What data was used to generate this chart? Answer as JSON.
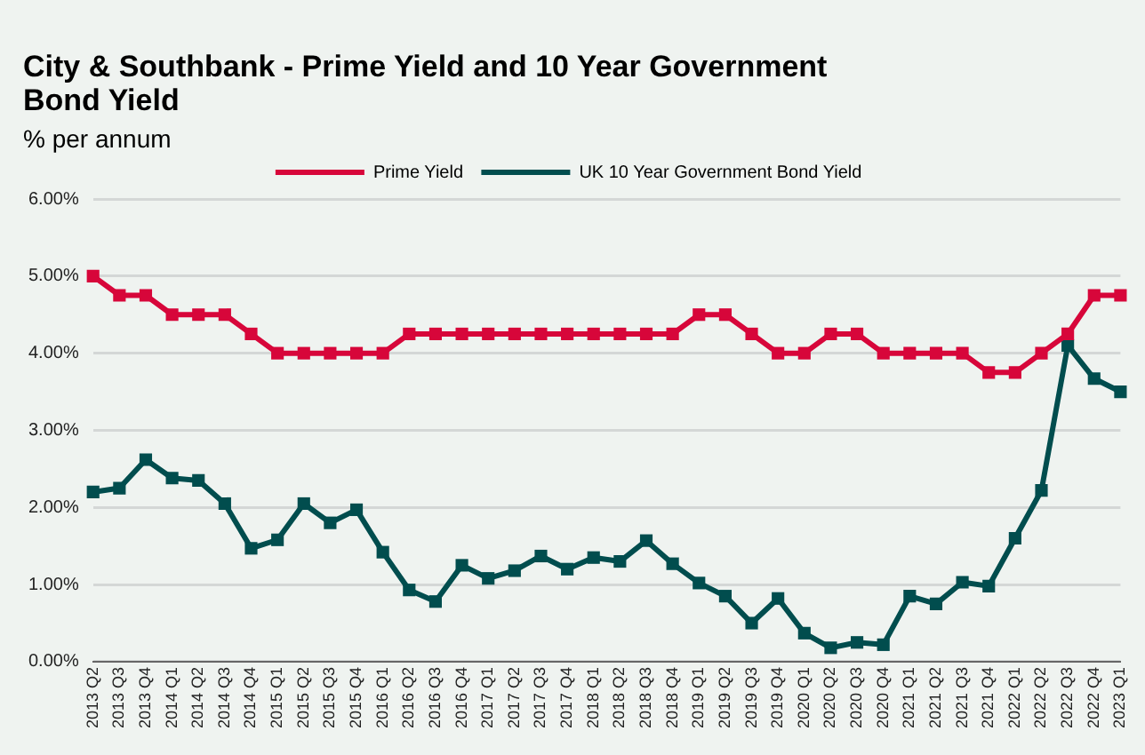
{
  "chart_data": {
    "type": "line",
    "title": "City & Southbank - Prime Yield and 10 Year Government Bond Yield",
    "ylabel": "% per annum",
    "categories": [
      "2013 Q2",
      "2013 Q3",
      "2013 Q4",
      "2014 Q1",
      "2014 Q2",
      "2014 Q3",
      "2014 Q4",
      "2015 Q1",
      "2015 Q2",
      "2015 Q3",
      "2015 Q4",
      "2016 Q1",
      "2016 Q2",
      "2016 Q3",
      "2016 Q4",
      "2017 Q1",
      "2017 Q2",
      "2017 Q3",
      "2017 Q4",
      "2018 Q1",
      "2018 Q2",
      "2018 Q3",
      "2018 Q4",
      "2019 Q1",
      "2019 Q2",
      "2019 Q3",
      "2019 Q4",
      "2020 Q1",
      "2020 Q2",
      "2020 Q3",
      "2020 Q4",
      "2021 Q1",
      "2021 Q2",
      "2021 Q3",
      "2021 Q4",
      "2022 Q1",
      "2022 Q2",
      "2022 Q3",
      "2022 Q4",
      "2023 Q1"
    ],
    "series": [
      {
        "name": "Prime Yield",
        "color": "#d7063a",
        "values": [
          5.0,
          4.75,
          4.75,
          4.5,
          4.5,
          4.5,
          4.25,
          4.0,
          4.0,
          4.0,
          4.0,
          4.0,
          4.25,
          4.25,
          4.25,
          4.25,
          4.25,
          4.25,
          4.25,
          4.25,
          4.25,
          4.25,
          4.25,
          4.5,
          4.5,
          4.25,
          4.0,
          4.0,
          4.25,
          4.25,
          4.0,
          4.0,
          4.0,
          4.0,
          3.75,
          3.75,
          4.0,
          4.25,
          4.75,
          4.75
        ]
      },
      {
        "name": "UK 10 Year Government Bond Yield",
        "color": "#014d4e",
        "values": [
          2.2,
          2.25,
          2.62,
          2.38,
          2.35,
          2.05,
          1.47,
          1.58,
          2.05,
          1.8,
          1.97,
          1.42,
          0.93,
          0.78,
          1.25,
          1.08,
          1.18,
          1.37,
          1.2,
          1.35,
          1.3,
          1.57,
          1.27,
          1.02,
          0.85,
          0.5,
          0.82,
          0.37,
          0.18,
          0.25,
          0.22,
          0.85,
          0.75,
          1.03,
          0.98,
          1.6,
          2.22,
          4.1,
          3.67,
          3.5
        ]
      }
    ],
    "ylim": [
      0,
      6
    ],
    "yticks": [
      {
        "value": 0,
        "label": "0.00%"
      },
      {
        "value": 1,
        "label": "1.00%"
      },
      {
        "value": 2,
        "label": "2.00%"
      },
      {
        "value": 3,
        "label": "3.00%"
      },
      {
        "value": 4,
        "label": "4.00%"
      },
      {
        "value": 5,
        "label": "5.00%"
      },
      {
        "value": 6,
        "label": "6.00%"
      }
    ],
    "grid": "y",
    "legend": "top",
    "marker": "square",
    "line_style": "solid"
  }
}
